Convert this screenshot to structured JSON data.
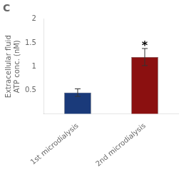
{
  "chart_data": {
    "type": "bar",
    "title": "C",
    "categories": [
      "1st microdialysis",
      "2nd microdialysis"
    ],
    "values": [
      0.45,
      1.2
    ],
    "errors": [
      0.08,
      0.18
    ],
    "colors": [
      "#1a3a7a",
      "#8b1010"
    ],
    "ylabel": "Extracellular fluid\nATP conc. (nM)",
    "ylim": [
      0,
      2
    ],
    "yticks": [
      0.5,
      1,
      1.5,
      2
    ],
    "grid": false,
    "annotations": [
      {
        "text": "*",
        "category": "2nd microdialysis"
      }
    ]
  }
}
